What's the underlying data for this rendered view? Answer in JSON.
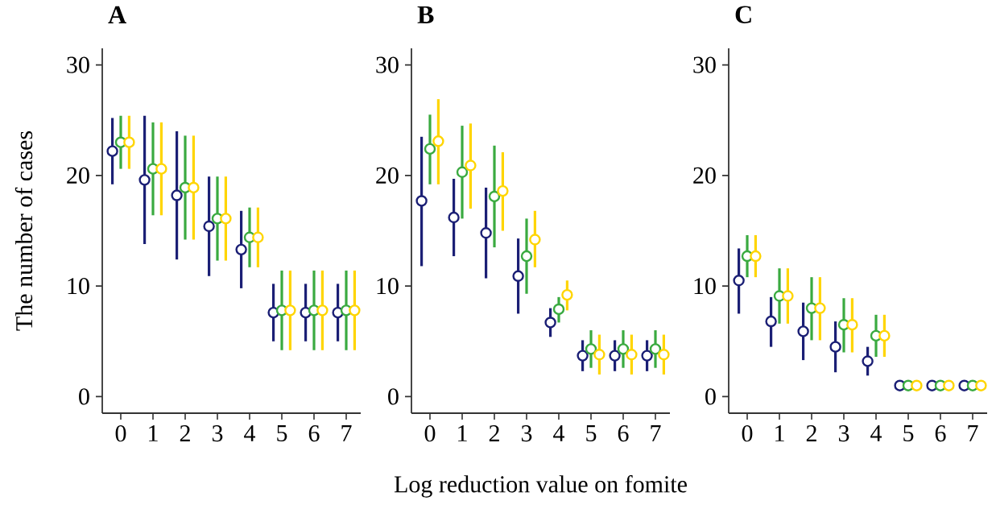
{
  "chart_data": [
    {
      "type": "scatter",
      "title": "A",
      "ylabel": "The number of cases",
      "categories": [
        "0",
        "1",
        "2",
        "3",
        "4",
        "5",
        "6",
        "7"
      ],
      "ylim": [
        -1.5,
        31.5
      ],
      "yticks": [
        0,
        10,
        20,
        30
      ],
      "marker": "circle",
      "series": [
        {
          "color": "#1b1f75",
          "values": [
            22.2,
            19.6,
            18.2,
            15.4,
            13.3,
            7.6,
            7.6,
            7.6
          ],
          "errors": [
            [
              19.2,
              25.2
            ],
            [
              13.8,
              25.4
            ],
            [
              12.4,
              24.0
            ],
            [
              10.9,
              19.9
            ],
            [
              9.8,
              16.8
            ],
            [
              5.0,
              10.2
            ],
            [
              5.0,
              10.2
            ],
            [
              5.0,
              10.2
            ]
          ]
        },
        {
          "color": "#3aaa40",
          "values": [
            23.0,
            20.6,
            18.9,
            16.1,
            14.4,
            7.8,
            7.8,
            7.8
          ],
          "errors": [
            [
              20.6,
              25.4
            ],
            [
              16.4,
              24.8
            ],
            [
              14.2,
              23.6
            ],
            [
              12.3,
              19.9
            ],
            [
              11.7,
              17.1
            ],
            [
              4.2,
              11.4
            ],
            [
              4.2,
              11.4
            ],
            [
              4.2,
              11.4
            ]
          ]
        },
        {
          "color": "#ffd500",
          "values": [
            23.0,
            20.6,
            18.9,
            16.1,
            14.4,
            7.8,
            7.8,
            7.8
          ],
          "errors": [
            [
              20.6,
              25.4
            ],
            [
              16.4,
              24.8
            ],
            [
              14.2,
              23.6
            ],
            [
              12.3,
              19.9
            ],
            [
              11.7,
              17.1
            ],
            [
              4.2,
              11.4
            ],
            [
              4.2,
              11.4
            ],
            [
              4.2,
              11.4
            ]
          ]
        }
      ]
    },
    {
      "type": "scatter",
      "title": "B",
      "xlabel": "Log reduction value on fomite",
      "categories": [
        "0",
        "1",
        "2",
        "3",
        "4",
        "5",
        "6",
        "7"
      ],
      "ylim": [
        -1.5,
        31.5
      ],
      "yticks": [
        0,
        10,
        20,
        30
      ],
      "marker": "circle",
      "series": [
        {
          "color": "#1b1f75",
          "values": [
            17.7,
            16.2,
            14.8,
            10.9,
            6.7,
            3.7,
            3.7,
            3.7
          ],
          "errors": [
            [
              11.8,
              23.5
            ],
            [
              12.7,
              19.7
            ],
            [
              10.7,
              18.9
            ],
            [
              7.5,
              14.3
            ],
            [
              5.4,
              8.0
            ],
            [
              2.3,
              5.1
            ],
            [
              2.3,
              5.1
            ],
            [
              2.3,
              5.1
            ]
          ]
        },
        {
          "color": "#3aaa40",
          "values": [
            22.4,
            20.3,
            18.1,
            12.7,
            7.9,
            4.3,
            4.3,
            4.3
          ],
          "errors": [
            [
              19.2,
              25.5
            ],
            [
              16.1,
              24.5
            ],
            [
              13.5,
              22.7
            ],
            [
              9.3,
              16.1
            ],
            [
              6.7,
              9.0
            ],
            [
              2.6,
              6.0
            ],
            [
              2.6,
              6.0
            ],
            [
              2.6,
              6.0
            ]
          ]
        },
        {
          "color": "#ffd500",
          "values": [
            23.1,
            20.9,
            18.6,
            14.2,
            9.2,
            3.8,
            3.8,
            3.8
          ],
          "errors": [
            [
              19.2,
              26.9
            ],
            [
              17.0,
              24.7
            ],
            [
              15.0,
              22.1
            ],
            [
              11.7,
              16.8
            ],
            [
              7.8,
              10.5
            ],
            [
              2.0,
              5.6
            ],
            [
              2.0,
              5.6
            ],
            [
              2.0,
              5.6
            ]
          ]
        }
      ]
    },
    {
      "type": "scatter",
      "title": "C",
      "categories": [
        "0",
        "1",
        "2",
        "3",
        "4",
        "5",
        "6",
        "7"
      ],
      "ylim": [
        -1.5,
        31.5
      ],
      "yticks": [
        0,
        10,
        20,
        30
      ],
      "marker": "circle",
      "series": [
        {
          "color": "#1b1f75",
          "values": [
            10.5,
            6.8,
            5.9,
            4.5,
            3.2,
            1.0,
            1.0,
            1.0
          ],
          "errors": [
            [
              7.5,
              13.4
            ],
            [
              4.5,
              9.0
            ],
            [
              3.3,
              8.5
            ],
            [
              2.2,
              6.8
            ],
            [
              1.9,
              4.5
            ],
            null,
            null,
            null
          ]
        },
        {
          "color": "#3aaa40",
          "values": [
            12.7,
            9.1,
            8.0,
            6.5,
            5.5,
            1.0,
            1.0,
            1.0
          ],
          "errors": [
            [
              10.8,
              14.6
            ],
            [
              6.6,
              11.6
            ],
            [
              5.1,
              10.8
            ],
            [
              4.0,
              8.9
            ],
            [
              3.6,
              7.4
            ],
            null,
            null,
            null
          ]
        },
        {
          "color": "#ffd500",
          "values": [
            12.7,
            9.1,
            8.0,
            6.5,
            5.5,
            1.0,
            1.0,
            1.0
          ],
          "errors": [
            [
              10.8,
              14.6
            ],
            [
              6.6,
              11.6
            ],
            [
              5.1,
              10.8
            ],
            [
              4.0,
              8.9
            ],
            [
              3.6,
              7.4
            ],
            null,
            null,
            null
          ]
        }
      ]
    }
  ]
}
